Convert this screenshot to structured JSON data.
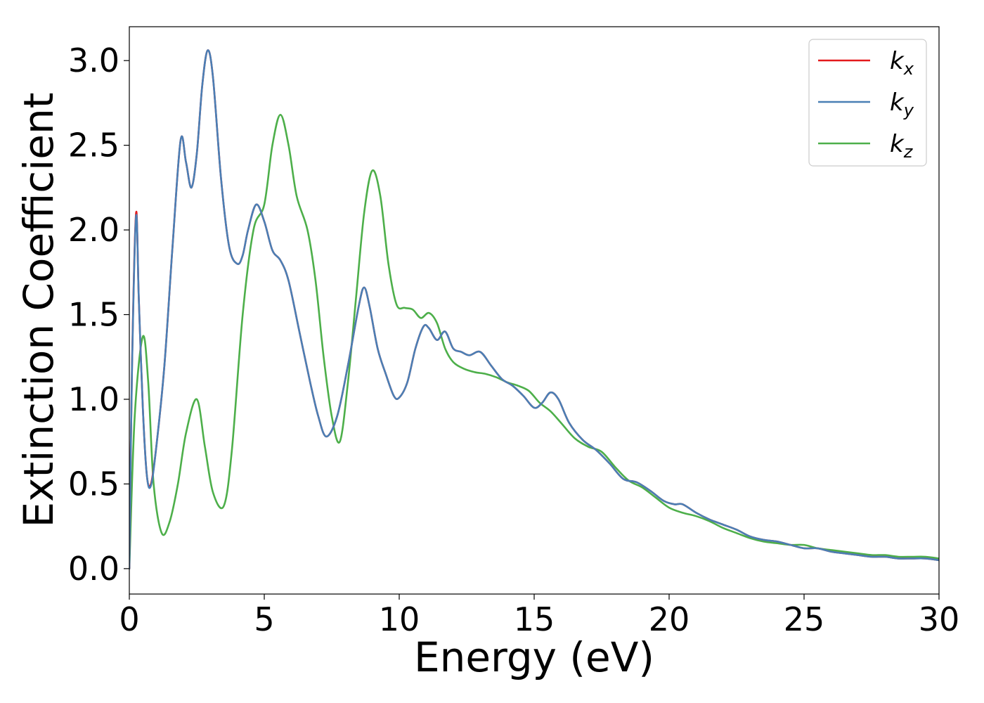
{
  "chart_data": {
    "type": "line",
    "xlabel": "Energy (eV)",
    "ylabel": "Extinction Coefficient",
    "xlim": [
      0,
      30
    ],
    "ylim": [
      -0.15,
      3.2
    ],
    "xticks": [
      0,
      5,
      10,
      15,
      20,
      25,
      30
    ],
    "xtick_labels": [
      "0",
      "5",
      "10",
      "15",
      "20",
      "25",
      "30"
    ],
    "yticks": [
      0.0,
      0.5,
      1.0,
      1.5,
      2.0,
      2.5,
      3.0
    ],
    "ytick_labels": [
      "0.0",
      "0.5",
      "1.0",
      "1.5",
      "2.0",
      "2.5",
      "3.0"
    ],
    "grid": false,
    "legend_position": "top-right",
    "series": [
      {
        "name": "k_x",
        "legend_base": "k",
        "legend_sub": "x",
        "color": "#e41a1c",
        "x": [
          0.0,
          0.1,
          0.25,
          0.35,
          0.5,
          0.65,
          0.8,
          1.0,
          1.3,
          1.6,
          1.9,
          2.1,
          2.3,
          2.5,
          2.7,
          2.9,
          3.1,
          3.4,
          3.7,
          4.0,
          4.2,
          4.4,
          4.7,
          5.0,
          5.3,
          5.6,
          5.9,
          6.3,
          6.7,
          7.0,
          7.3,
          7.7,
          8.1,
          8.5,
          8.7,
          8.9,
          9.2,
          9.5,
          9.8,
          10.0,
          10.3,
          10.6,
          10.9,
          11.1,
          11.4,
          11.7,
          12.0,
          12.3,
          12.6,
          13.0,
          13.4,
          13.8,
          14.2,
          14.6,
          15.0,
          15.3,
          15.6,
          15.9,
          16.3,
          16.8,
          17.3,
          17.8,
          18.3,
          18.8,
          19.3,
          19.8,
          20.2,
          20.5,
          21.0,
          21.5,
          22.0,
          22.5,
          23.0,
          23.5,
          24.0,
          24.5,
          25.0,
          25.5,
          26.0,
          26.5,
          27.0,
          27.5,
          28.0,
          28.5,
          29.0,
          29.5,
          30.0
        ],
        "y": [
          0.0,
          1.2,
          2.1,
          1.6,
          0.95,
          0.55,
          0.5,
          0.72,
          1.2,
          1.9,
          2.53,
          2.4,
          2.25,
          2.45,
          2.85,
          3.06,
          2.9,
          2.3,
          1.9,
          1.8,
          1.85,
          2.0,
          2.15,
          2.05,
          1.88,
          1.82,
          1.7,
          1.4,
          1.1,
          0.9,
          0.78,
          0.9,
          1.2,
          1.55,
          1.66,
          1.55,
          1.3,
          1.15,
          1.02,
          1.01,
          1.1,
          1.3,
          1.43,
          1.42,
          1.35,
          1.4,
          1.3,
          1.28,
          1.26,
          1.28,
          1.2,
          1.12,
          1.08,
          1.02,
          0.95,
          0.98,
          1.04,
          1.0,
          0.86,
          0.76,
          0.7,
          0.62,
          0.53,
          0.51,
          0.46,
          0.4,
          0.38,
          0.38,
          0.33,
          0.29,
          0.26,
          0.23,
          0.19,
          0.17,
          0.16,
          0.14,
          0.12,
          0.12,
          0.1,
          0.09,
          0.08,
          0.07,
          0.07,
          0.06,
          0.06,
          0.06,
          0.05
        ]
      },
      {
        "name": "k_y",
        "legend_base": "k",
        "legend_sub": "y",
        "color": "#4a7fb5",
        "x": [
          0.0,
          0.1,
          0.25,
          0.35,
          0.5,
          0.65,
          0.8,
          1.0,
          1.3,
          1.6,
          1.9,
          2.1,
          2.3,
          2.5,
          2.7,
          2.9,
          3.1,
          3.4,
          3.7,
          4.0,
          4.2,
          4.4,
          4.7,
          5.0,
          5.3,
          5.6,
          5.9,
          6.3,
          6.7,
          7.0,
          7.3,
          7.7,
          8.1,
          8.5,
          8.7,
          8.9,
          9.2,
          9.5,
          9.8,
          10.0,
          10.3,
          10.6,
          10.9,
          11.1,
          11.4,
          11.7,
          12.0,
          12.3,
          12.6,
          13.0,
          13.4,
          13.8,
          14.2,
          14.6,
          15.0,
          15.3,
          15.6,
          15.9,
          16.3,
          16.8,
          17.3,
          17.8,
          18.3,
          18.8,
          19.3,
          19.8,
          20.2,
          20.5,
          21.0,
          21.5,
          22.0,
          22.5,
          23.0,
          23.5,
          24.0,
          24.5,
          25.0,
          25.5,
          26.0,
          26.5,
          27.0,
          27.5,
          28.0,
          28.5,
          29.0,
          29.5,
          30.0
        ],
        "y": [
          0.0,
          1.18,
          2.08,
          1.6,
          0.95,
          0.55,
          0.49,
          0.72,
          1.2,
          1.9,
          2.53,
          2.4,
          2.25,
          2.45,
          2.85,
          3.06,
          2.9,
          2.3,
          1.9,
          1.8,
          1.85,
          2.0,
          2.15,
          2.05,
          1.88,
          1.82,
          1.7,
          1.4,
          1.1,
          0.9,
          0.78,
          0.9,
          1.2,
          1.55,
          1.66,
          1.55,
          1.3,
          1.15,
          1.02,
          1.01,
          1.1,
          1.3,
          1.43,
          1.42,
          1.35,
          1.4,
          1.3,
          1.28,
          1.26,
          1.28,
          1.2,
          1.12,
          1.08,
          1.02,
          0.95,
          0.98,
          1.04,
          1.0,
          0.86,
          0.76,
          0.7,
          0.62,
          0.53,
          0.51,
          0.46,
          0.4,
          0.38,
          0.38,
          0.33,
          0.29,
          0.26,
          0.23,
          0.19,
          0.17,
          0.16,
          0.14,
          0.12,
          0.12,
          0.1,
          0.09,
          0.08,
          0.07,
          0.07,
          0.06,
          0.06,
          0.06,
          0.05
        ]
      },
      {
        "name": "k_z",
        "legend_base": "k",
        "legend_sub": "z",
        "color": "#4daf4a",
        "x": [
          0.0,
          0.2,
          0.5,
          0.7,
          0.9,
          1.2,
          1.5,
          1.8,
          2.1,
          2.5,
          2.8,
          3.1,
          3.5,
          3.8,
          4.2,
          4.6,
          5.0,
          5.3,
          5.6,
          5.9,
          6.2,
          6.6,
          6.9,
          7.2,
          7.5,
          7.8,
          8.1,
          8.4,
          8.7,
          9.0,
          9.3,
          9.6,
          9.9,
          10.2,
          10.5,
          10.8,
          11.1,
          11.4,
          11.7,
          12.0,
          12.4,
          12.8,
          13.2,
          13.6,
          14.0,
          14.4,
          14.8,
          15.2,
          15.6,
          16.0,
          16.5,
          17.0,
          17.5,
          18.0,
          18.5,
          19.0,
          19.5,
          20.0,
          20.5,
          21.0,
          21.5,
          22.0,
          22.5,
          23.0,
          23.5,
          24.0,
          24.5,
          25.0,
          25.5,
          26.0,
          26.5,
          27.0,
          27.5,
          28.0,
          28.5,
          29.0,
          29.5,
          30.0
        ],
        "y": [
          0.0,
          0.9,
          1.37,
          1.1,
          0.5,
          0.21,
          0.28,
          0.5,
          0.8,
          1.0,
          0.72,
          0.45,
          0.37,
          0.7,
          1.5,
          2.0,
          2.15,
          2.5,
          2.68,
          2.5,
          2.2,
          2.0,
          1.7,
          1.25,
          0.9,
          0.75,
          1.1,
          1.6,
          2.1,
          2.35,
          2.2,
          1.8,
          1.56,
          1.54,
          1.53,
          1.48,
          1.51,
          1.45,
          1.3,
          1.22,
          1.18,
          1.16,
          1.15,
          1.13,
          1.1,
          1.08,
          1.05,
          0.98,
          0.93,
          0.86,
          0.77,
          0.72,
          0.69,
          0.6,
          0.52,
          0.48,
          0.42,
          0.36,
          0.33,
          0.31,
          0.28,
          0.24,
          0.21,
          0.18,
          0.16,
          0.15,
          0.14,
          0.14,
          0.12,
          0.11,
          0.1,
          0.09,
          0.08,
          0.08,
          0.07,
          0.07,
          0.07,
          0.06
        ]
      }
    ]
  }
}
